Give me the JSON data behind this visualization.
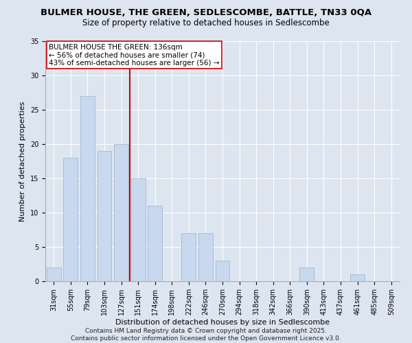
{
  "title": "BULMER HOUSE, THE GREEN, SEDLESCOMBE, BATTLE, TN33 0QA",
  "subtitle": "Size of property relative to detached houses in Sedlescombe",
  "xlabel": "Distribution of detached houses by size in Sedlescombe",
  "ylabel": "Number of detached properties",
  "categories": [
    "31sqm",
    "55sqm",
    "79sqm",
    "103sqm",
    "127sqm",
    "151sqm",
    "174sqm",
    "198sqm",
    "222sqm",
    "246sqm",
    "270sqm",
    "294sqm",
    "318sqm",
    "342sqm",
    "366sqm",
    "390sqm",
    "413sqm",
    "437sqm",
    "461sqm",
    "485sqm",
    "509sqm"
  ],
  "values": [
    2,
    18,
    27,
    19,
    20,
    15,
    11,
    0,
    7,
    7,
    3,
    0,
    0,
    0,
    0,
    2,
    0,
    0,
    1,
    0,
    0
  ],
  "bar_color": "#c8d8ee",
  "bar_edge_color": "#9ab0cc",
  "vline_x": 4.5,
  "vline_color": "#cc0000",
  "annotation_text": "BULMER HOUSE THE GREEN: 136sqm\n← 56% of detached houses are smaller (74)\n43% of semi-detached houses are larger (56) →",
  "annotation_box_color": "#ffffff",
  "annotation_box_edge": "#cc0000",
  "ylim": [
    0,
    35
  ],
  "yticks": [
    0,
    5,
    10,
    15,
    20,
    25,
    30,
    35
  ],
  "bg_color": "#dde5f0",
  "plot_bg_color": "#dde5f0",
  "footer": "Contains HM Land Registry data © Crown copyright and database right 2025.\nContains public sector information licensed under the Open Government Licence v3.0.",
  "title_fontsize": 9.5,
  "subtitle_fontsize": 8.5,
  "xlabel_fontsize": 8,
  "ylabel_fontsize": 8,
  "tick_fontsize": 7,
  "footer_fontsize": 6.5,
  "annotation_fontsize": 7.5
}
